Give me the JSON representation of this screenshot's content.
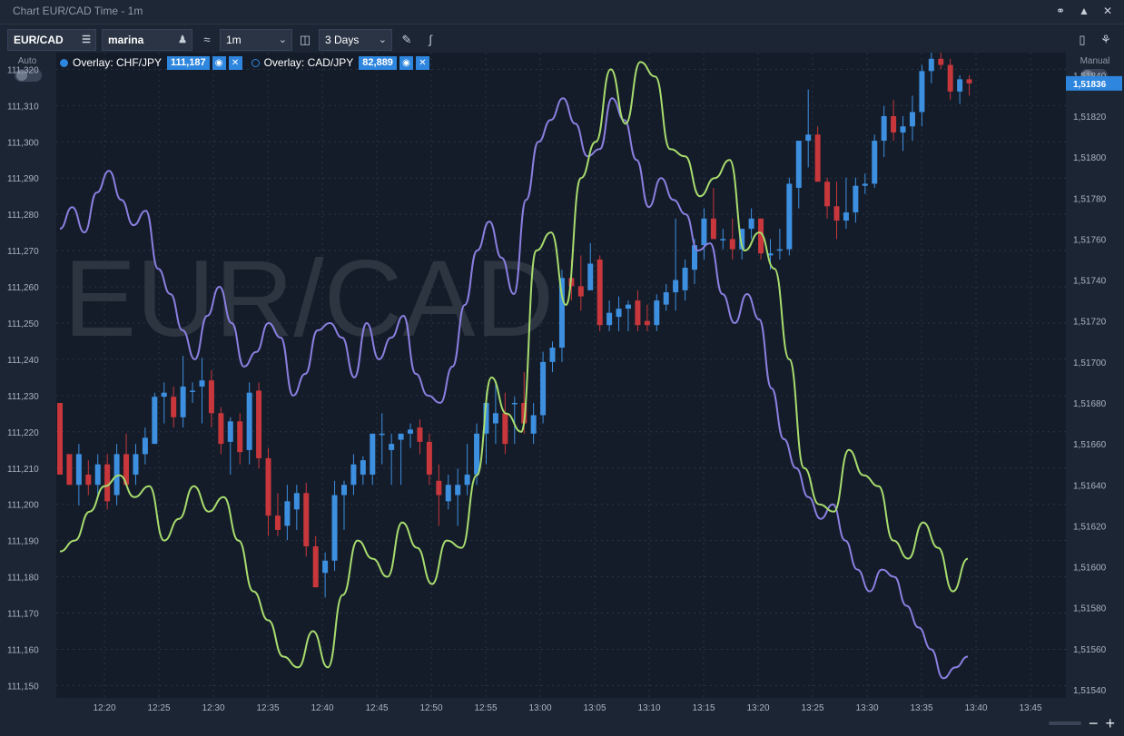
{
  "window": {
    "title": "Chart EUR/CAD Time - 1m"
  },
  "toolbar": {
    "symbol": "EUR/CAD",
    "account": "marina",
    "timeframe": "1m",
    "range": "3 Days"
  },
  "left_panel": {
    "label": "Auto"
  },
  "right_panel": {
    "label": "Manual"
  },
  "overlays": [
    {
      "label": "Overlay: CHF/JPY",
      "value": "111,187",
      "dot": "filled"
    },
    {
      "label": "Overlay: CAD/JPY",
      "value": "82,889",
      "dot": "hollow"
    }
  ],
  "watermark": "EUR/CAD",
  "colors": {
    "accent": "#2e86de",
    "up": "#3d8fe0",
    "down": "#c7373b",
    "line_chfjpy": "#8b7fe0",
    "line_cadjpy": "#a8dc6e"
  },
  "chart_data": {
    "type": "candlestick",
    "left_axis": {
      "ticks": [
        "111,320",
        "111,310",
        "111,300",
        "111,290",
        "111,280",
        "111,270",
        "111,260",
        "111,250",
        "111,240",
        "111,230",
        "111,220",
        "111,210",
        "111,200",
        "111,190",
        "111,180",
        "111,170",
        "111,160",
        "111,150"
      ],
      "ylim": [
        111.1466,
        111.3246
      ]
    },
    "right_axis": {
      "ticks": [
        "1,51840",
        "1,51820",
        "1,51800",
        "1,51780",
        "1,51760",
        "1,51740",
        "1,51720",
        "1,51700",
        "1,51680",
        "1,51660",
        "1,51640",
        "1,51620",
        "1,51600",
        "1,51580",
        "1,51560",
        "1,51540"
      ],
      "ylim": [
        1.51536,
        1.51851
      ],
      "current_price": "1,51836"
    },
    "x_axis": {
      "ticks": [
        "12:20",
        "12:25",
        "12:30",
        "12:35",
        "12:40",
        "12:45",
        "12:50",
        "12:55",
        "13:00",
        "13:05",
        "13:10",
        "13:15",
        "13:20",
        "13:25",
        "13:30",
        "13:35",
        "13:40",
        "13:45"
      ]
    },
    "candles": [
      [
        1.5168,
        1.5168,
        1.51645,
        1.51645
      ],
      [
        1.51655,
        1.51655,
        1.5164,
        1.5164
      ],
      [
        1.5164,
        1.5166,
        1.5163,
        1.51655
      ],
      [
        1.51645,
        1.51652,
        1.51635,
        1.5164
      ],
      [
        1.5164,
        1.51655,
        1.51635,
        1.5165
      ],
      [
        1.5165,
        1.51655,
        1.51628,
        1.51632
      ],
      [
        1.51635,
        1.5166,
        1.5163,
        1.51655
      ],
      [
        1.51655,
        1.51665,
        1.5164,
        1.5164
      ],
      [
        1.51645,
        1.5166,
        1.5164,
        1.51655
      ],
      [
        1.51655,
        1.51668,
        1.5165,
        1.51663
      ],
      [
        1.5166,
        1.51685,
        1.5166,
        1.51683
      ],
      [
        1.51683,
        1.5169,
        1.5167,
        1.51685
      ],
      [
        1.51683,
        1.51688,
        1.51668,
        1.51673
      ],
      [
        1.51673,
        1.51703,
        1.51668,
        1.51688
      ],
      [
        1.51686,
        1.5169,
        1.5168,
        1.51686
      ],
      [
        1.51688,
        1.51702,
        1.5167,
        1.51691
      ],
      [
        1.51691,
        1.51696,
        1.51668,
        1.51675
      ],
      [
        1.51675,
        1.51678,
        1.51655,
        1.5166
      ],
      [
        1.51661,
        1.51673,
        1.51645,
        1.51671
      ],
      [
        1.51671,
        1.51675,
        1.5165,
        1.51656
      ],
      [
        1.51657,
        1.5169,
        1.5165,
        1.51685
      ],
      [
        1.51686,
        1.5169,
        1.51648,
        1.51653
      ],
      [
        1.51653,
        1.51658,
        1.51615,
        1.51625
      ],
      [
        1.51625,
        1.51636,
        1.51615,
        1.51618
      ],
      [
        1.5162,
        1.5164,
        1.51613,
        1.51632
      ],
      [
        1.51628,
        1.5164,
        1.51618,
        1.51636
      ],
      [
        1.51636,
        1.51641,
        1.51605,
        1.5161
      ],
      [
        1.5161,
        1.51615,
        1.5159,
        1.5159
      ],
      [
        1.51597,
        1.51607,
        1.51585,
        1.51603
      ],
      [
        1.51603,
        1.51642,
        1.51598,
        1.51635
      ],
      [
        1.51635,
        1.51642,
        1.51618,
        1.5164
      ],
      [
        1.5164,
        1.51655,
        1.51635,
        1.5165
      ],
      [
        1.51645,
        1.51654,
        1.5164,
        1.51652
      ],
      [
        1.51645,
        1.5166,
        1.5164,
        1.51665
      ],
      [
        1.51665,
        1.51675,
        1.5165,
        1.51665
      ],
      [
        1.51657,
        1.51665,
        1.5164,
        1.5166
      ],
      [
        1.51662,
        1.51662,
        1.5164,
        1.51665
      ],
      [
        1.51665,
        1.5167,
        1.51658,
        1.51667
      ],
      [
        1.51668,
        1.51672,
        1.51655,
        1.51661
      ],
      [
        1.51661,
        1.51665,
        1.5164,
        1.51645
      ],
      [
        1.51642,
        1.5165,
        1.5162,
        1.51635
      ],
      [
        1.51632,
        1.51645,
        1.51628,
        1.5164
      ],
      [
        1.51635,
        1.51648,
        1.5162,
        1.5164
      ],
      [
        1.5164,
        1.5166,
        1.51635,
        1.51645
      ],
      [
        1.51645,
        1.5167,
        1.5164,
        1.51665
      ],
      [
        1.51665,
        1.51685,
        1.5165,
        1.5168
      ],
      [
        1.5167,
        1.5169,
        1.5166,
        1.51675
      ],
      [
        1.51675,
        1.51685,
        1.51655,
        1.5166
      ],
      [
        1.5168,
        1.51683,
        1.5166,
        1.5168
      ],
      [
        1.5168,
        1.51695,
        1.51665,
        1.5167
      ],
      [
        1.51665,
        1.5168,
        1.5166,
        1.51674
      ],
      [
        1.51674,
        1.51705,
        1.5167,
        1.517
      ],
      [
        1.517,
        1.5171,
        1.51695,
        1.51707
      ],
      [
        1.51707,
        1.51745,
        1.517,
        1.51741
      ],
      [
        1.51741,
        1.5175,
        1.5173,
        1.51737
      ],
      [
        1.51737,
        1.51752,
        1.51725,
        1.51732
      ],
      [
        1.51735,
        1.51758,
        1.51735,
        1.51748
      ],
      [
        1.5175,
        1.51752,
        1.51715,
        1.51718
      ],
      [
        1.51718,
        1.5173,
        1.51715,
        1.51724
      ],
      [
        1.51722,
        1.51732,
        1.51715,
        1.51726
      ],
      [
        1.51726,
        1.5173,
        1.51715,
        1.51728
      ],
      [
        1.5173,
        1.51735,
        1.51715,
        1.51718
      ],
      [
        1.5172,
        1.51728,
        1.51715,
        1.51718
      ],
      [
        1.51718,
        1.51733,
        1.51715,
        1.5173
      ],
      [
        1.51728,
        1.51738,
        1.51725,
        1.51734
      ],
      [
        1.51734,
        1.5177,
        1.51725,
        1.5174
      ],
      [
        1.51735,
        1.5175,
        1.5173,
        1.51746
      ],
      [
        1.51745,
        1.5176,
        1.51738,
        1.51757
      ],
      [
        1.51757,
        1.51775,
        1.5175,
        1.5177
      ],
      [
        1.5177,
        1.51785,
        1.51765,
        1.5176
      ],
      [
        1.5176,
        1.51765,
        1.51755,
        1.5176
      ],
      [
        1.5176,
        1.5177,
        1.5175,
        1.51755
      ],
      [
        1.51755,
        1.51765,
        1.5175,
        1.51765
      ],
      [
        1.51765,
        1.51775,
        1.5176,
        1.5177
      ],
      [
        1.5177,
        1.5177,
        1.5175,
        1.51753
      ],
      [
        1.51752,
        1.5176,
        1.51745,
        1.51753
      ],
      [
        1.51755,
        1.51765,
        1.5175,
        1.51755
      ],
      [
        1.51755,
        1.5179,
        1.51752,
        1.51787
      ],
      [
        1.51785,
        1.51805,
        1.51775,
        1.51808
      ],
      [
        1.51808,
        1.51833,
        1.51795,
        1.51811
      ],
      [
        1.51811,
        1.51815,
        1.5179,
        1.51788
      ],
      [
        1.51788,
        1.5179,
        1.5177,
        1.51776
      ],
      [
        1.51776,
        1.51788,
        1.5176,
        1.51769
      ],
      [
        1.51769,
        1.5179,
        1.51765,
        1.51773
      ],
      [
        1.51773,
        1.5179,
        1.51768,
        1.51786
      ],
      [
        1.51786,
        1.51792,
        1.51782,
        1.51787
      ],
      [
        1.51787,
        1.51811,
        1.51785,
        1.51808
      ],
      [
        1.51808,
        1.51825,
        1.518,
        1.5182
      ],
      [
        1.5182,
        1.51828,
        1.51808,
        1.51812
      ],
      [
        1.51812,
        1.5182,
        1.51803,
        1.51815
      ],
      [
        1.51815,
        1.5183,
        1.51808,
        1.51822
      ],
      [
        1.51822,
        1.51845,
        1.51815,
        1.51842
      ],
      [
        1.51842,
        1.51852,
        1.51836,
        1.51848
      ],
      [
        1.51848,
        1.51855,
        1.51843,
        1.51845
      ],
      [
        1.51845,
        1.51848,
        1.51828,
        1.51832
      ],
      [
        1.51832,
        1.5184,
        1.51826,
        1.51838
      ],
      [
        1.51838,
        1.5184,
        1.5183,
        1.51836
      ]
    ],
    "series": [
      {
        "name": "Overlay: CHF/JPY",
        "color": "#8b7fe0",
        "values": [
          111.276,
          111.282,
          111.275,
          111.286,
          111.292,
          111.284,
          111.277,
          111.281,
          111.265,
          111.258,
          111.248,
          111.24,
          111.252,
          111.26,
          111.25,
          111.238,
          111.242,
          111.25,
          111.246,
          111.23,
          111.236,
          111.248,
          111.25,
          111.246,
          111.235,
          111.25,
          111.24,
          111.246,
          111.252,
          111.236,
          111.23,
          111.228,
          111.238,
          111.255,
          111.27,
          111.278,
          111.268,
          111.258,
          111.284,
          111.3,
          111.306,
          111.312,
          111.305,
          111.296,
          111.298,
          111.312,
          111.306,
          111.295,
          111.282,
          111.29,
          111.284,
          111.28,
          111.27,
          111.272,
          111.258,
          111.25,
          111.258,
          111.251,
          111.232,
          111.218,
          111.21,
          111.202,
          111.196,
          111.2,
          111.19,
          111.182,
          111.176,
          111.182,
          111.18,
          111.172,
          111.166,
          111.16,
          111.152,
          111.155,
          111.158
        ]
      },
      {
        "name": "Overlay: CAD/JPY",
        "color": "#a8dc6e",
        "values": [
          111.187,
          111.19,
          111.198,
          111.205,
          111.208,
          111.202,
          111.205,
          111.19,
          111.196,
          111.205,
          111.198,
          111.202,
          111.19,
          111.176,
          111.168,
          111.158,
          111.155,
          111.165,
          111.155,
          111.175,
          111.19,
          111.185,
          111.18,
          111.195,
          111.188,
          111.178,
          111.19,
          111.188,
          111.208,
          111.235,
          111.225,
          111.22,
          111.27,
          111.275,
          111.255,
          111.29,
          111.3,
          111.32,
          111.305,
          111.322,
          111.318,
          111.298,
          111.296,
          111.285,
          111.29,
          111.295,
          111.27,
          111.275,
          111.265,
          111.24,
          111.21,
          111.2,
          111.198,
          111.215,
          111.208,
          111.205,
          111.19,
          111.185,
          111.195,
          111.188,
          111.176,
          111.185
        ]
      }
    ]
  }
}
